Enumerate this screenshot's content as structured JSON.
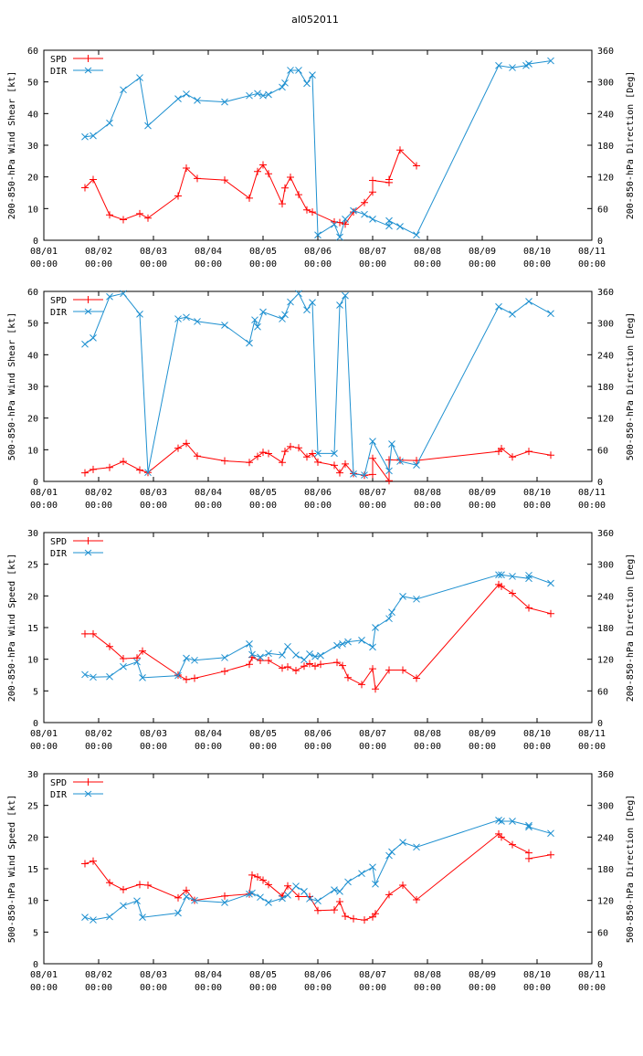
{
  "page_title": "al052011",
  "colors": {
    "spd": "#ff0000",
    "dir": "#1e90d0",
    "title": "#0000ff",
    "axis": "#000000"
  },
  "x_ticks": [
    [
      "08/01",
      "00:00"
    ],
    [
      "08/02",
      "00:00"
    ],
    [
      "08/03",
      "00:00"
    ],
    [
      "08/04",
      "00:00"
    ],
    [
      "08/05",
      "00:00"
    ],
    [
      "08/06",
      "00:00"
    ],
    [
      "08/07",
      "00:00"
    ],
    [
      "08/08",
      "00:00"
    ],
    [
      "08/09",
      "00:00"
    ],
    [
      "08/10",
      "00:00"
    ],
    [
      "08/11",
      "00:00"
    ]
  ],
  "legend": {
    "spd": "SPD",
    "dir": "DIR"
  },
  "chart_data": [
    {
      "type": "line",
      "ylabel": "200-850-hPa Wind Shear [kt]",
      "y2label": "200-850-hPa Direction [Deg]",
      "ylim": [
        0,
        60
      ],
      "yticks": [
        0,
        10,
        20,
        30,
        40,
        50,
        60
      ],
      "y2lim": [
        0,
        360
      ],
      "y2ticks": [
        0,
        60,
        120,
        180,
        240,
        300,
        360
      ],
      "xlim": [
        0,
        10
      ],
      "series": [
        {
          "name": "SPD",
          "axis": "left",
          "marker": "plus",
          "x": [
            0.75,
            0.9,
            1.2,
            1.45,
            1.75,
            1.9,
            2.45,
            2.6,
            2.8,
            3.3,
            3.75,
            3.9,
            4.0,
            4.1,
            4.35,
            4.4,
            4.5,
            4.65,
            4.8,
            4.9,
            5.3,
            5.4,
            5.5,
            5.65,
            5.85,
            6.0,
            6.0,
            6.3,
            6.3,
            6.5,
            6.8
          ],
          "y": [
            16.6,
            19.2,
            8.0,
            6.5,
            8.4,
            7.0,
            14.0,
            22.8,
            19.5,
            19.0,
            13.3,
            21.7,
            23.8,
            21.0,
            11.5,
            16.5,
            19.9,
            14.4,
            9.6,
            8.9,
            5.8,
            5.6,
            5.1,
            8.9,
            11.9,
            15.2,
            18.9,
            18.2,
            19.2,
            28.5,
            23.5
          ]
        },
        {
          "name": "DIR",
          "axis": "right",
          "marker": "cross",
          "x": [
            0.75,
            0.9,
            1.2,
            1.45,
            1.75,
            1.9,
            2.45,
            2.6,
            2.8,
            3.3,
            3.75,
            3.9,
            4.0,
            4.1,
            4.35,
            4.4,
            4.5,
            4.65,
            4.8,
            4.9,
            5.0,
            5.3,
            5.4,
            5.5,
            5.65,
            5.85,
            6.0,
            6.3,
            6.3,
            6.5,
            6.8,
            8.3,
            8.55,
            8.8,
            8.85,
            9.25
          ],
          "y": [
            196,
            198,
            222,
            285,
            308,
            217,
            268,
            277,
            265,
            262,
            274,
            278,
            274,
            276,
            290,
            298,
            322,
            322,
            297,
            313,
            10,
            30,
            6,
            40,
            56,
            49,
            40,
            27,
            37,
            26,
            10,
            331,
            327,
            331,
            334,
            340
          ]
        }
      ]
    },
    {
      "type": "line",
      "ylabel": "500-850-hPa Wind Shear [kt]",
      "y2label": "500-850-hPa Direction [Deg]",
      "ylim": [
        0,
        60
      ],
      "yticks": [
        0,
        10,
        20,
        30,
        40,
        50,
        60
      ],
      "y2lim": [
        0,
        360
      ],
      "y2ticks": [
        0,
        60,
        120,
        180,
        240,
        300,
        360
      ],
      "xlim": [
        0,
        10
      ],
      "series": [
        {
          "name": "SPD",
          "axis": "left",
          "marker": "plus",
          "x": [
            0.75,
            0.9,
            1.2,
            1.45,
            1.75,
            1.9,
            2.45,
            2.6,
            2.8,
            3.3,
            3.75,
            3.9,
            4.0,
            4.1,
            4.35,
            4.4,
            4.5,
            4.65,
            4.8,
            4.9,
            5.0,
            5.3,
            5.4,
            5.5,
            5.65,
            5.85,
            6.0,
            6.0,
            6.3,
            6.3,
            6.5,
            6.8,
            8.3,
            8.35,
            8.55,
            8.85,
            9.25
          ],
          "y": [
            2.7,
            3.8,
            4.4,
            6.3,
            3.6,
            2.8,
            10.5,
            12.0,
            8.0,
            6.5,
            6.0,
            7.9,
            9.2,
            8.8,
            6.0,
            9.5,
            11.0,
            10.6,
            7.7,
            8.8,
            6.1,
            5.1,
            2.7,
            5.5,
            2.5,
            1.9,
            2.2,
            7.3,
            0.2,
            6.8,
            6.7,
            6.6,
            9.5,
            10.4,
            7.7,
            9.5,
            8.3
          ]
        },
        {
          "name": "DIR",
          "axis": "right",
          "marker": "cross",
          "x": [
            0.75,
            0.9,
            1.2,
            1.45,
            1.75,
            1.9,
            2.45,
            2.6,
            2.8,
            3.3,
            3.75,
            3.85,
            3.9,
            4.0,
            4.35,
            4.4,
            4.5,
            4.65,
            4.8,
            4.9,
            5.0,
            5.3,
            5.4,
            5.5,
            5.65,
            5.85,
            6.0,
            6.3,
            6.35,
            6.5,
            6.8,
            8.3,
            8.55,
            8.85,
            9.25
          ],
          "y": [
            260,
            272,
            350,
            356,
            317,
            17,
            308,
            311,
            303,
            296,
            262,
            306,
            293,
            321,
            308,
            316,
            340,
            356,
            325,
            339,
            53,
            53,
            334,
            352,
            14,
            12,
            76,
            20,
            71,
            38,
            31,
            331,
            317,
            341,
            318
          ]
        }
      ]
    },
    {
      "type": "line",
      "ylabel": "200-850-hPa Wind Speed [kt]",
      "y2label": "200-850-hPa Direction [Deg]",
      "ylim": [
        0,
        30
      ],
      "yticks": [
        0,
        5,
        10,
        15,
        20,
        25,
        30
      ],
      "y2lim": [
        0,
        360
      ],
      "y2ticks": [
        0,
        60,
        120,
        180,
        240,
        300,
        360
      ],
      "xlim": [
        0,
        10
      ],
      "series": [
        {
          "name": "SPD",
          "axis": "left",
          "marker": "plus",
          "x": [
            0.75,
            0.9,
            1.2,
            1.45,
            1.7,
            1.8,
            2.45,
            2.6,
            2.75,
            3.3,
            3.75,
            3.8,
            3.95,
            4.1,
            4.35,
            4.45,
            4.6,
            4.75,
            4.85,
            4.95,
            5.05,
            5.35,
            5.45,
            5.55,
            5.8,
            6.0,
            6.05,
            6.3,
            6.55,
            6.8,
            8.3,
            8.35,
            8.55,
            8.85,
            9.25
          ],
          "y": [
            14.0,
            14.0,
            12.0,
            10.1,
            10.2,
            11.3,
            7.5,
            6.8,
            7.0,
            8.1,
            9.2,
            10.3,
            9.8,
            9.8,
            8.6,
            8.8,
            8.2,
            8.9,
            9.3,
            8.9,
            9.2,
            9.5,
            9.0,
            7.1,
            6.0,
            8.5,
            5.3,
            8.3,
            8.3,
            7.0,
            21.8,
            21.5,
            20.4,
            18.1,
            17.2
          ]
        },
        {
          "name": "DIR",
          "axis": "right",
          "marker": "cross",
          "x": [
            0.75,
            0.9,
            1.2,
            1.45,
            1.7,
            1.8,
            2.45,
            2.6,
            2.75,
            3.3,
            3.75,
            3.8,
            3.95,
            4.1,
            4.35,
            4.45,
            4.6,
            4.75,
            4.85,
            4.95,
            5.05,
            5.35,
            5.45,
            5.55,
            5.8,
            6.0,
            6.05,
            6.3,
            6.35,
            6.55,
            6.8,
            8.3,
            8.35,
            8.55,
            8.85,
            8.85,
            9.25
          ],
          "y": [
            91,
            86,
            87,
            106,
            115,
            85,
            89,
            122,
            118,
            123,
            149,
            129,
            124,
            131,
            128,
            144,
            128,
            119,
            130,
            125,
            127,
            146,
            149,
            153,
            156,
            143,
            180,
            197,
            209,
            239,
            234,
            280,
            280,
            277,
            273,
            279,
            264
          ]
        }
      ]
    },
    {
      "type": "line",
      "ylabel": "500-850-hPa Wind Speed [kt]",
      "y2label": "500-850-hPa Direction [Deg]",
      "ylim": [
        0,
        30
      ],
      "yticks": [
        0,
        5,
        10,
        15,
        20,
        25,
        30
      ],
      "y2lim": [
        0,
        360
      ],
      "y2ticks": [
        0,
        60,
        120,
        180,
        240,
        300,
        360
      ],
      "xlim": [
        0,
        10
      ],
      "series": [
        {
          "name": "SPD",
          "axis": "left",
          "marker": "plus",
          "x": [
            0.75,
            0.9,
            1.2,
            1.45,
            1.75,
            1.9,
            2.45,
            2.6,
            2.75,
            3.3,
            3.75,
            3.8,
            3.9,
            4.0,
            4.1,
            4.35,
            4.45,
            4.65,
            4.85,
            5.0,
            5.3,
            5.4,
            5.5,
            5.65,
            5.85,
            6.0,
            6.05,
            6.3,
            6.55,
            6.8,
            8.3,
            8.35,
            8.55,
            8.85,
            8.85,
            9.25
          ],
          "y": [
            15.8,
            16.2,
            12.8,
            11.7,
            12.5,
            12.4,
            10.4,
            11.6,
            10.0,
            10.7,
            11.0,
            14.0,
            13.7,
            13.2,
            12.5,
            10.7,
            12.3,
            10.6,
            10.6,
            8.4,
            8.5,
            9.8,
            7.5,
            7.1,
            6.9,
            7.4,
            7.9,
            10.9,
            12.4,
            10.1,
            20.5,
            20.0,
            18.8,
            17.5,
            16.6,
            17.2
          ]
        },
        {
          "name": "DIR",
          "axis": "right",
          "marker": "cross",
          "x": [
            0.75,
            0.9,
            1.2,
            1.45,
            1.7,
            1.8,
            2.45,
            2.6,
            2.75,
            3.3,
            3.75,
            3.8,
            3.95,
            4.1,
            4.35,
            4.45,
            4.6,
            4.75,
            4.85,
            5.0,
            5.3,
            5.4,
            5.55,
            5.8,
            6.0,
            6.05,
            6.3,
            6.35,
            6.55,
            6.8,
            8.3,
            8.35,
            8.55,
            8.85,
            8.85,
            9.25
          ],
          "y": [
            88,
            83,
            89,
            110,
            119,
            88,
            96,
            127,
            120,
            116,
            132,
            134,
            126,
            116,
            124,
            130,
            147,
            137,
            123,
            119,
            140,
            137,
            155,
            171,
            183,
            151,
            205,
            212,
            230,
            221,
            272,
            270,
            270,
            262,
            259,
            247
          ]
        }
      ]
    }
  ]
}
